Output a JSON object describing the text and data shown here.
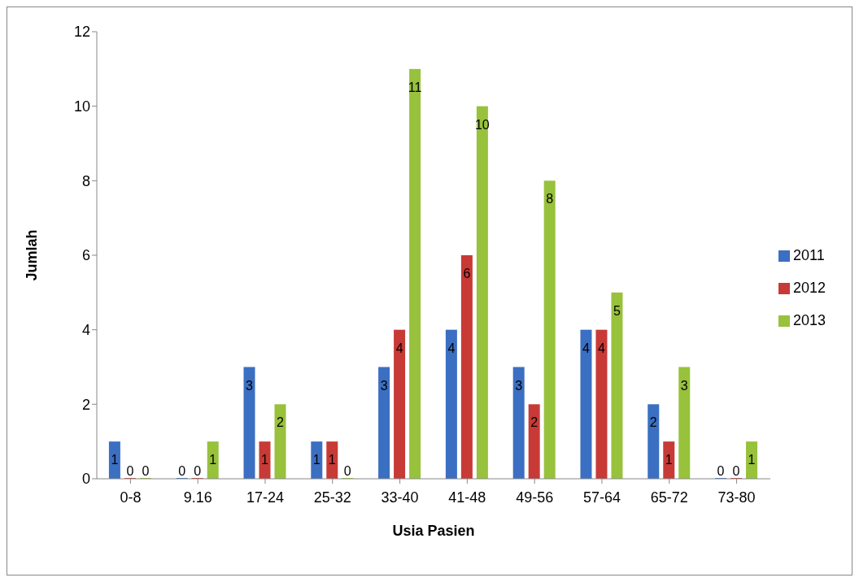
{
  "chart_data": {
    "type": "bar",
    "xlabel": "Usia Pasien",
    "ylabel": "Jumlah",
    "categories": [
      "0-8",
      "9.16",
      "17-24",
      "25-32",
      "33-40",
      "41-48",
      "49-56",
      "57-64",
      "65-72",
      "73-80"
    ],
    "series": [
      {
        "name": "2011",
        "color": "#3b6fc2",
        "values": [
          1,
          0,
          3,
          1,
          3,
          4,
          3,
          4,
          2,
          0
        ]
      },
      {
        "name": "2012",
        "color": "#c83a36",
        "values": [
          0,
          0,
          1,
          1,
          4,
          6,
          2,
          4,
          1,
          0
        ]
      },
      {
        "name": "2013",
        "color": "#98c13c",
        "values": [
          0,
          1,
          2,
          0,
          11,
          10,
          8,
          5,
          3,
          1
        ]
      }
    ],
    "ylim": [
      0,
      12
    ],
    "yticks": [
      0,
      2,
      4,
      6,
      8,
      10,
      12
    ],
    "grid": false,
    "legend": "right",
    "data_labels": true
  }
}
